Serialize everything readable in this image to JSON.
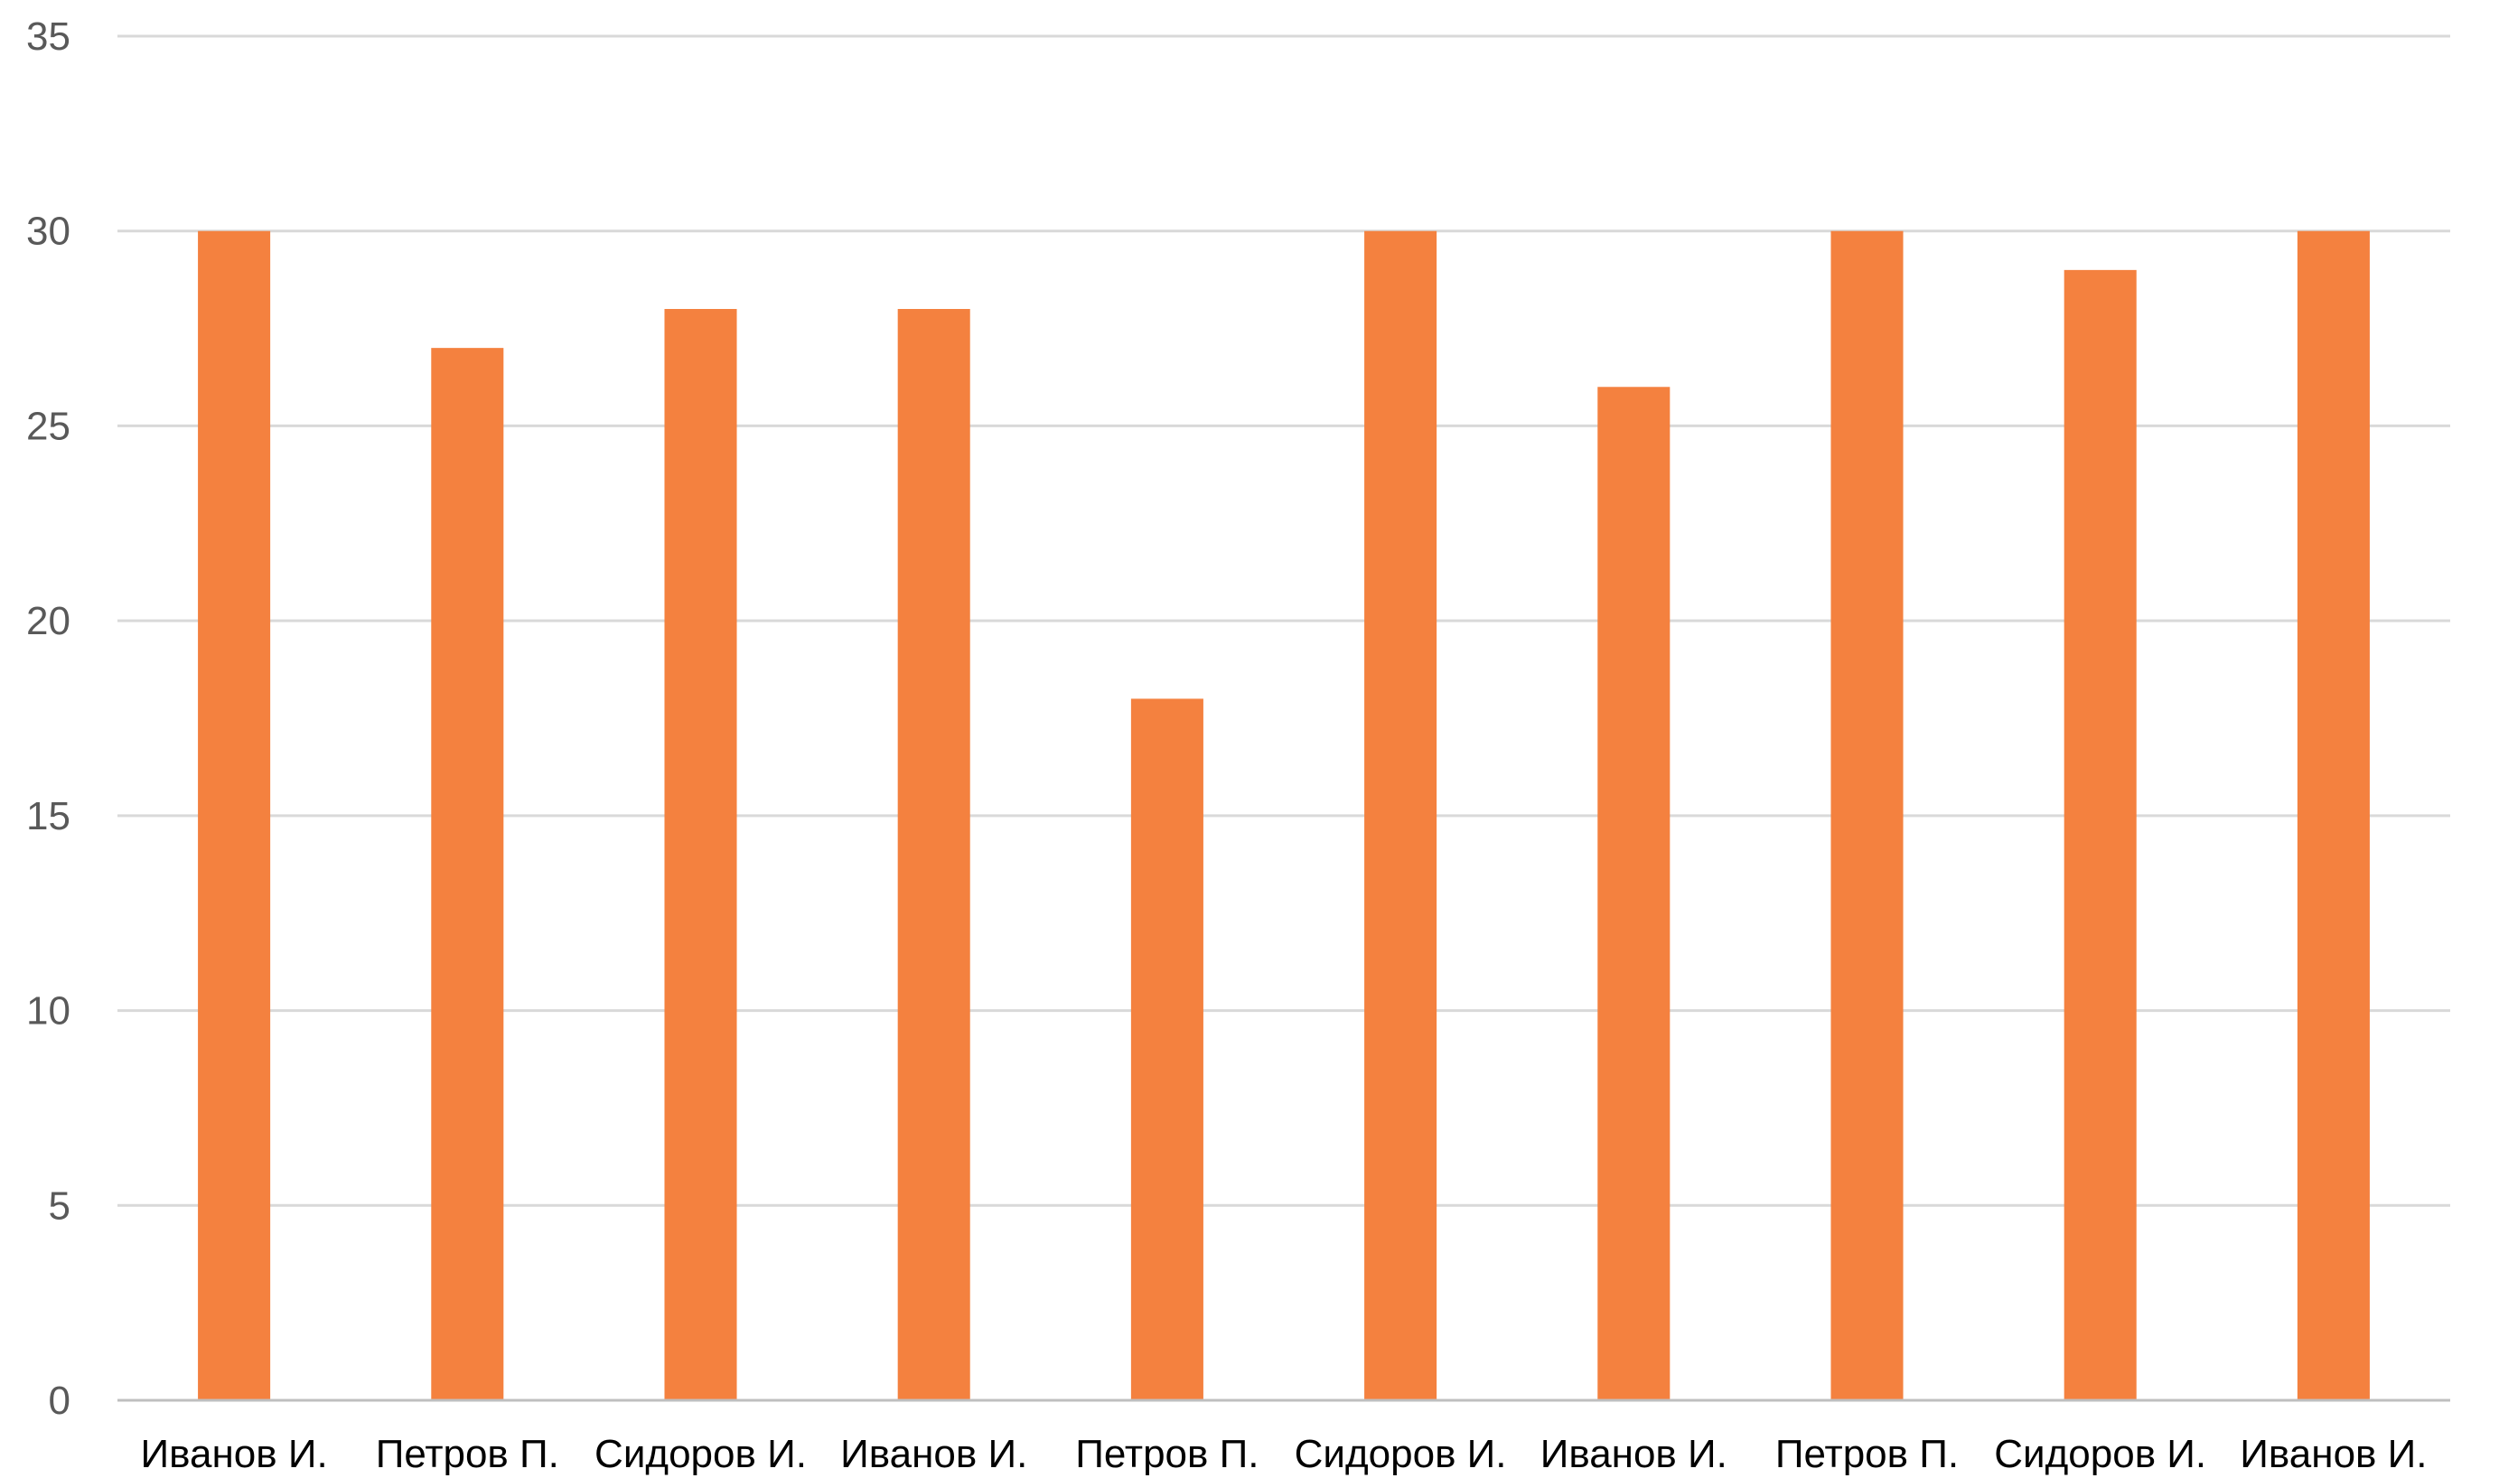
{
  "chart_data": {
    "type": "bar",
    "title": "",
    "xlabel": "",
    "ylabel": "",
    "categories": [
      "Иванов И.",
      "Петров П.",
      "Сидоров И.",
      "Иванов И.",
      "Петров П.",
      "Сидоров И.",
      "Иванов И.",
      "Петров П.",
      "Сидоров И.",
      "Иванов И."
    ],
    "values": [
      30,
      27,
      28,
      28,
      18,
      30,
      26,
      30,
      29,
      30
    ],
    "ylim": [
      0,
      35
    ],
    "yticks": [
      0,
      5,
      10,
      15,
      20,
      25,
      30,
      35
    ],
    "grid": true,
    "legend": "none",
    "bar_color": "#F4813F",
    "grid_color": "#D9D9D9"
  }
}
